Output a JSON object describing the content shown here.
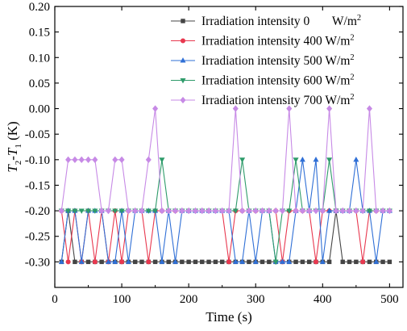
{
  "chart_data": {
    "type": "line",
    "title": "",
    "xlabel": "Time (s)",
    "ylabel_parts": [
      "T",
      "2",
      "-T",
      "1",
      " (K)"
    ],
    "xlim": [
      0,
      520
    ],
    "ylim": [
      -0.35,
      0.2
    ],
    "xticks": [
      0,
      100,
      200,
      300,
      400,
      500
    ],
    "yticks": [
      -0.3,
      -0.25,
      -0.2,
      -0.15,
      -0.1,
      -0.05,
      0.0,
      0.05,
      0.1,
      0.15,
      0.2
    ],
    "ytick_labels": [
      "-0.30",
      "-0.25",
      "-0.20",
      "-0.15",
      "-0.10",
      "-0.05",
      "0.00",
      "0.05",
      "0.10",
      "0.15",
      "0.20"
    ],
    "legend_position": "top-right",
    "grid": false,
    "series": [
      {
        "name": "Irradiation intensity 0",
        "unit": "W/m",
        "unit_sup": "2",
        "color": "#444444",
        "marker": "square",
        "x": [
          10,
          20,
          30,
          40,
          50,
          60,
          70,
          80,
          90,
          100,
          110,
          120,
          130,
          140,
          150,
          160,
          170,
          180,
          190,
          200,
          210,
          220,
          230,
          240,
          250,
          260,
          270,
          280,
          290,
          300,
          310,
          320,
          330,
          340,
          350,
          360,
          370,
          380,
          390,
          400,
          410,
          420,
          430,
          440,
          450,
          460,
          470,
          480,
          490,
          500
        ],
        "y": [
          -0.3,
          -0.2,
          -0.3,
          -0.3,
          -0.3,
          -0.3,
          -0.3,
          -0.3,
          -0.3,
          -0.3,
          -0.3,
          -0.3,
          -0.3,
          -0.3,
          -0.3,
          -0.3,
          -0.3,
          -0.3,
          -0.3,
          -0.3,
          -0.3,
          -0.3,
          -0.3,
          -0.3,
          -0.3,
          -0.3,
          -0.3,
          -0.3,
          -0.3,
          -0.3,
          -0.3,
          -0.3,
          -0.3,
          -0.3,
          -0.3,
          -0.3,
          -0.3,
          -0.3,
          -0.3,
          -0.3,
          -0.3,
          -0.2,
          -0.3,
          -0.3,
          -0.3,
          -0.3,
          -0.3,
          -0.3,
          -0.3,
          -0.3
        ]
      },
      {
        "name": "Irradiation intensity 400",
        "unit": "W/m",
        "unit_sup": "2",
        "color": "#e8384f",
        "marker": "circle",
        "x": [
          10,
          20,
          30,
          40,
          50,
          60,
          70,
          80,
          90,
          100,
          110,
          120,
          130,
          140,
          150,
          160,
          170,
          180,
          190,
          200,
          210,
          220,
          230,
          240,
          250,
          260,
          270,
          280,
          290,
          300,
          310,
          320,
          330,
          340,
          350,
          360,
          370,
          380,
          390,
          400,
          410,
          420,
          430,
          440,
          450,
          460,
          470,
          480,
          490,
          500
        ],
        "y": [
          -0.2,
          -0.3,
          -0.2,
          -0.3,
          -0.2,
          -0.3,
          -0.2,
          -0.3,
          -0.2,
          -0.3,
          -0.2,
          -0.2,
          -0.2,
          -0.3,
          -0.2,
          -0.2,
          -0.2,
          -0.2,
          -0.2,
          -0.2,
          -0.2,
          -0.2,
          -0.2,
          -0.2,
          -0.2,
          -0.3,
          -0.2,
          -0.2,
          -0.2,
          -0.2,
          -0.2,
          -0.2,
          -0.2,
          -0.3,
          -0.2,
          -0.2,
          -0.2,
          -0.2,
          -0.3,
          -0.2,
          -0.2,
          -0.2,
          -0.2,
          -0.2,
          -0.2,
          -0.3,
          -0.2,
          -0.2,
          -0.2,
          -0.2
        ]
      },
      {
        "name": "Irradiation intensity 500",
        "unit": "W/m",
        "unit_sup": "2",
        "color": "#2f6fd6",
        "marker": "triangle-up",
        "x": [
          10,
          20,
          30,
          40,
          50,
          60,
          70,
          80,
          90,
          100,
          110,
          120,
          130,
          140,
          150,
          160,
          170,
          180,
          190,
          200,
          210,
          220,
          230,
          240,
          250,
          260,
          270,
          280,
          290,
          300,
          310,
          320,
          330,
          340,
          350,
          360,
          370,
          380,
          390,
          400,
          410,
          420,
          430,
          440,
          450,
          460,
          470,
          480,
          490,
          500
        ],
        "y": [
          -0.3,
          -0.2,
          -0.2,
          -0.3,
          -0.2,
          -0.2,
          -0.2,
          -0.3,
          -0.3,
          -0.2,
          -0.3,
          -0.2,
          -0.2,
          -0.2,
          -0.2,
          -0.3,
          -0.2,
          -0.3,
          -0.2,
          -0.2,
          -0.2,
          -0.2,
          -0.2,
          -0.2,
          -0.2,
          -0.2,
          -0.3,
          -0.3,
          -0.2,
          -0.3,
          -0.2,
          -0.2,
          -0.3,
          -0.3,
          -0.3,
          -0.2,
          -0.1,
          -0.2,
          -0.1,
          -0.3,
          -0.2,
          -0.2,
          -0.2,
          -0.2,
          -0.1,
          -0.2,
          -0.2,
          -0.3,
          -0.2,
          -0.2
        ]
      },
      {
        "name": "Irradiation intensity 600",
        "unit": "W/m",
        "unit_sup": "2",
        "color": "#2e9b6a",
        "marker": "triangle-down",
        "x": [
          10,
          20,
          30,
          40,
          50,
          60,
          70,
          80,
          90,
          100,
          110,
          120,
          130,
          140,
          150,
          160,
          170,
          180,
          190,
          200,
          210,
          220,
          230,
          240,
          250,
          260,
          270,
          280,
          290,
          300,
          310,
          320,
          330,
          340,
          350,
          360,
          370,
          380,
          390,
          400,
          410,
          420,
          430,
          440,
          450,
          460,
          470,
          480,
          490,
          500
        ],
        "y": [
          -0.2,
          -0.2,
          -0.2,
          -0.2,
          -0.2,
          -0.2,
          -0.2,
          -0.2,
          -0.2,
          -0.2,
          -0.2,
          -0.2,
          -0.2,
          -0.2,
          -0.2,
          -0.1,
          -0.2,
          -0.2,
          -0.2,
          -0.2,
          -0.2,
          -0.2,
          -0.2,
          -0.2,
          -0.2,
          -0.2,
          -0.2,
          -0.1,
          -0.2,
          -0.2,
          -0.2,
          -0.2,
          -0.3,
          -0.2,
          -0.2,
          -0.1,
          -0.2,
          -0.2,
          -0.2,
          -0.2,
          -0.1,
          -0.2,
          -0.2,
          -0.2,
          -0.2,
          -0.2,
          -0.2,
          -0.2,
          -0.2,
          -0.2
        ]
      },
      {
        "name": "Irradiation intensity 700",
        "unit": "W/m",
        "unit_sup": "2",
        "color": "#c78ae6",
        "marker": "diamond",
        "x": [
          10,
          20,
          30,
          40,
          50,
          60,
          70,
          80,
          90,
          100,
          110,
          120,
          130,
          140,
          150,
          160,
          170,
          180,
          190,
          200,
          210,
          220,
          230,
          240,
          250,
          260,
          270,
          280,
          290,
          300,
          310,
          320,
          330,
          340,
          350,
          360,
          370,
          380,
          390,
          400,
          410,
          420,
          430,
          440,
          450,
          460,
          470,
          480,
          490,
          500
        ],
        "y": [
          -0.2,
          -0.1,
          -0.1,
          -0.1,
          -0.1,
          -0.1,
          -0.2,
          -0.2,
          -0.1,
          -0.1,
          -0.2,
          -0.2,
          -0.2,
          -0.1,
          0.0,
          -0.2,
          -0.2,
          -0.2,
          -0.2,
          -0.2,
          -0.2,
          -0.2,
          -0.2,
          -0.2,
          -0.2,
          -0.2,
          0.0,
          -0.2,
          -0.2,
          -0.2,
          -0.2,
          -0.2,
          -0.2,
          -0.2,
          0.0,
          -0.2,
          -0.2,
          -0.2,
          -0.2,
          -0.2,
          0.0,
          -0.2,
          -0.2,
          -0.2,
          -0.2,
          -0.2,
          0.0,
          -0.2,
          -0.2,
          -0.2
        ]
      }
    ]
  }
}
